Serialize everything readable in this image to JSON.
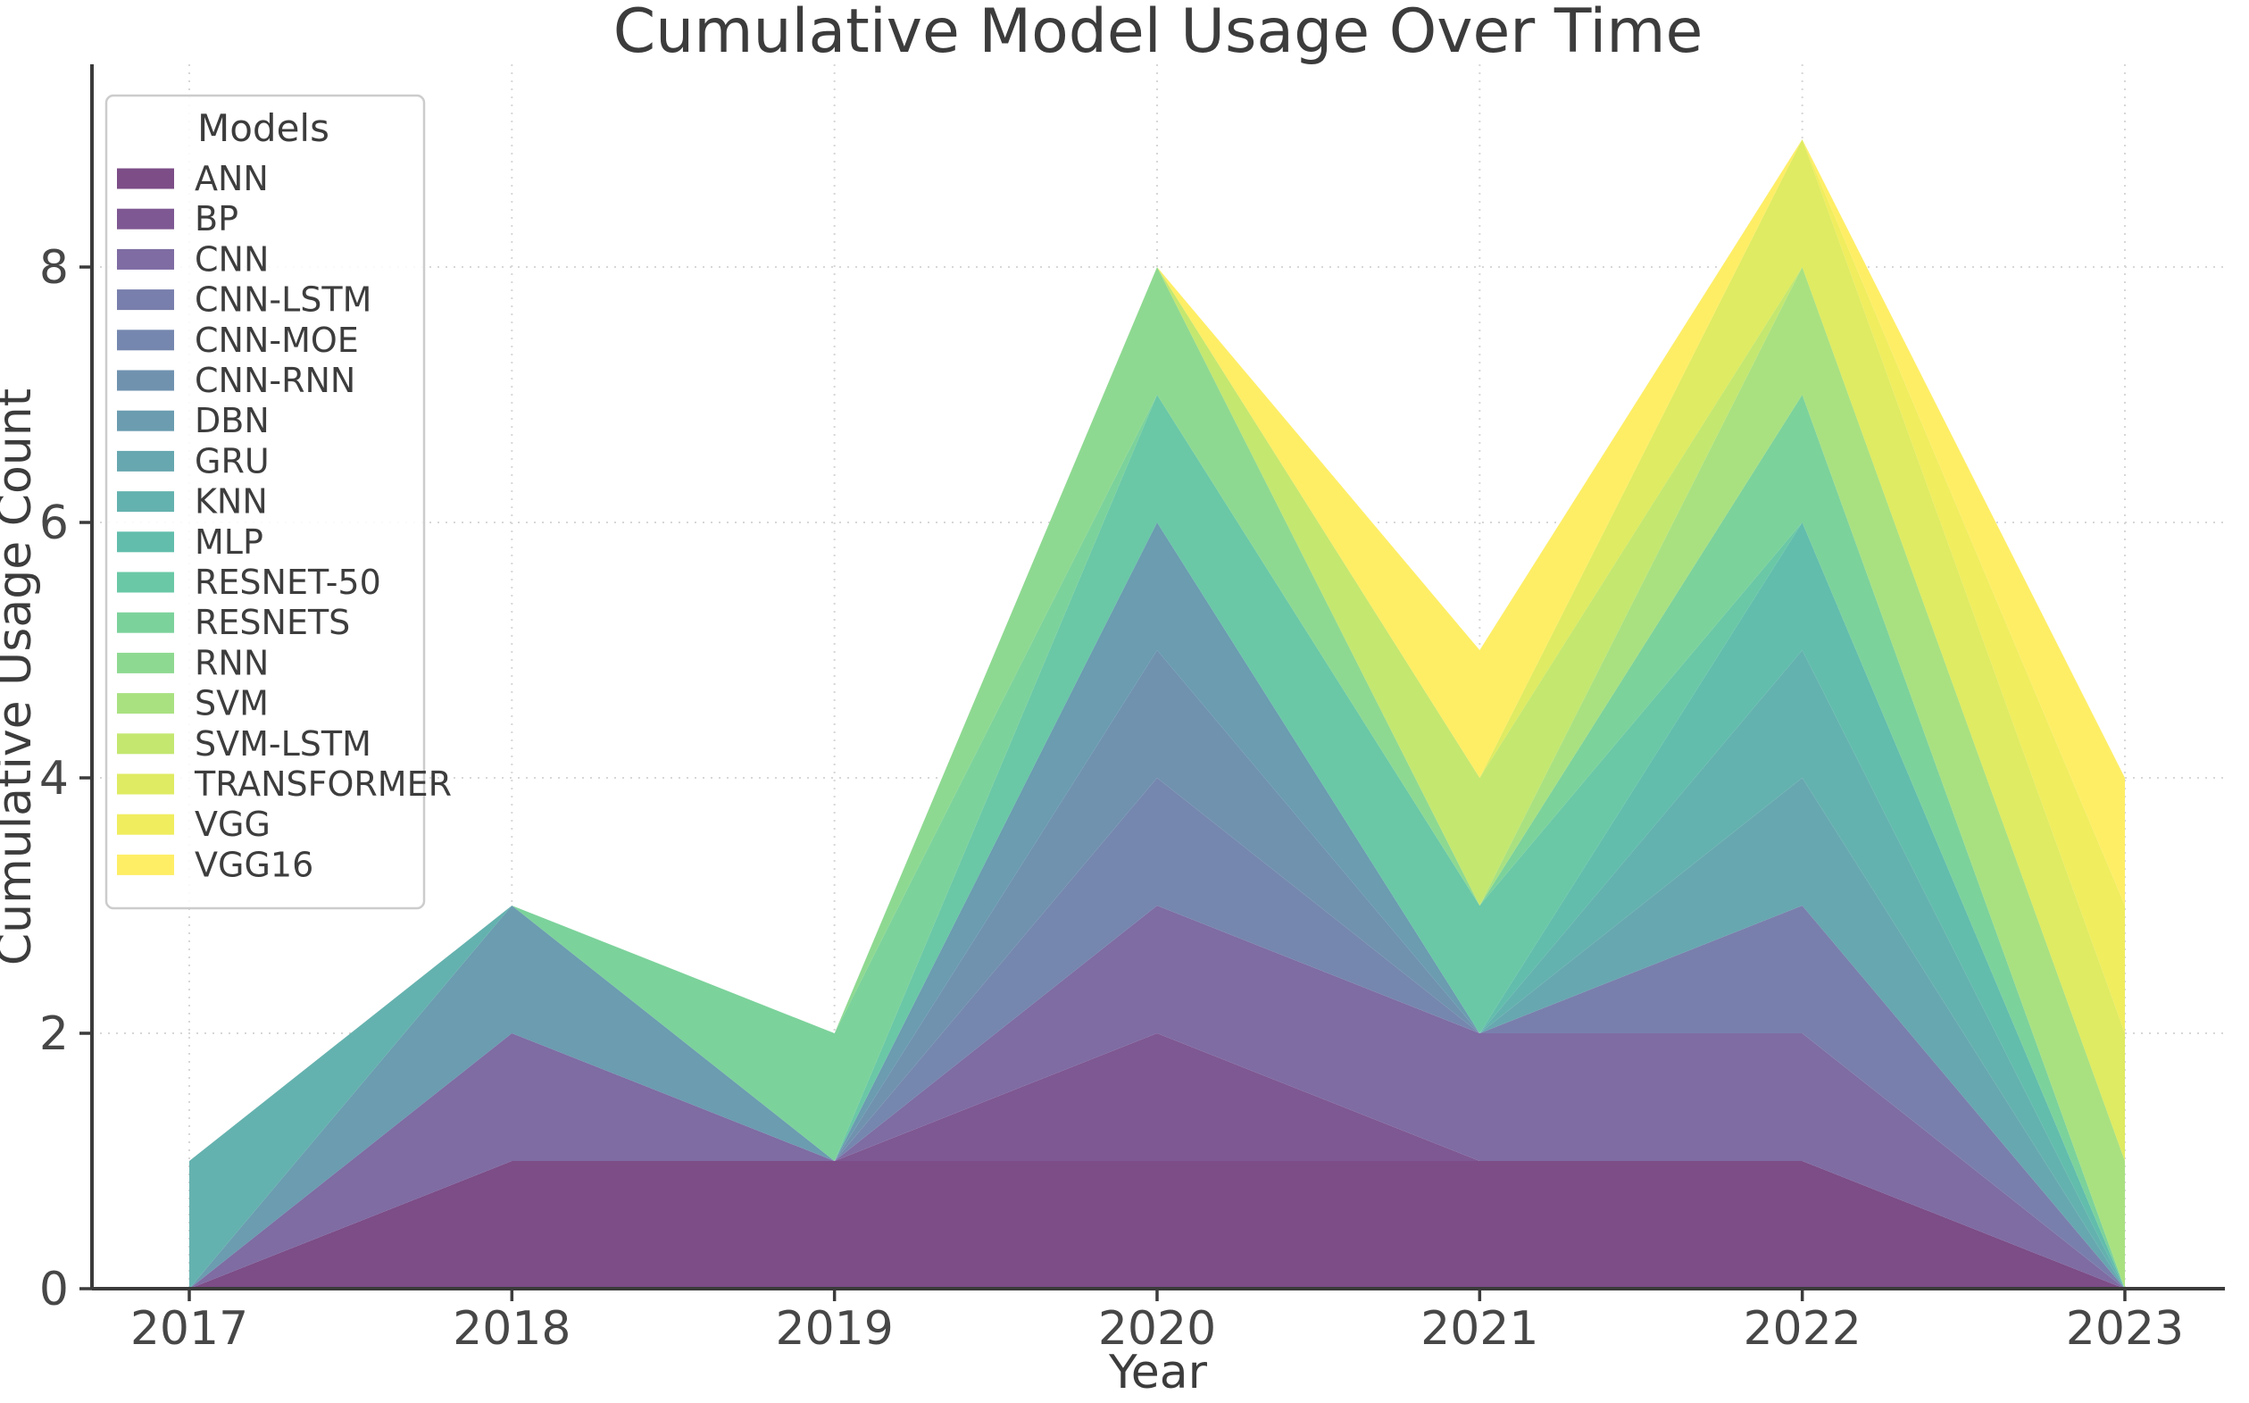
{
  "chart_data": {
    "type": "area",
    "stacked": true,
    "title": "Cumulative Model Usage Over Time",
    "xlabel": "Year",
    "ylabel": "Cumulative Usage Count",
    "legend_title": "Models",
    "legend_position": "upper-left",
    "grid": "dotted",
    "x": [
      2017,
      2018,
      2019,
      2020,
      2021,
      2022,
      2023
    ],
    "yticks": [
      0,
      2,
      4,
      6,
      8
    ],
    "ylim": [
      0,
      9.6
    ],
    "totals_by_year": [
      1,
      3,
      2,
      8,
      5,
      9,
      4
    ],
    "series": [
      {
        "name": "ANN",
        "color": "#7c4d87",
        "values": [
          0,
          1,
          1,
          1,
          1,
          1,
          0
        ]
      },
      {
        "name": "BP",
        "color": "#7e5892",
        "values": [
          0,
          0,
          0,
          1,
          0,
          0,
          0
        ]
      },
      {
        "name": "CNN",
        "color": "#7e6ca3",
        "values": [
          0,
          1,
          0,
          1,
          1,
          1,
          0
        ]
      },
      {
        "name": "CNN-LSTM",
        "color": "#797fac",
        "values": [
          0,
          0,
          0,
          0,
          0,
          1,
          0
        ]
      },
      {
        "name": "CNN-MOE",
        "color": "#7587ae",
        "values": [
          0,
          0,
          0,
          1,
          0,
          0,
          0
        ]
      },
      {
        "name": "CNN-RNN",
        "color": "#7092af",
        "values": [
          0,
          0,
          0,
          1,
          0,
          0,
          0
        ]
      },
      {
        "name": "DBN",
        "color": "#6b9cb0",
        "values": [
          0,
          1,
          0,
          1,
          0,
          0,
          0
        ]
      },
      {
        "name": "GRU",
        "color": "#67a7b0",
        "values": [
          0,
          0,
          0,
          0,
          0,
          1,
          0
        ]
      },
      {
        "name": "KNN",
        "color": "#64b2af",
        "values": [
          1,
          0,
          0,
          0,
          0,
          1,
          0
        ]
      },
      {
        "name": "MLP",
        "color": "#62bdac",
        "values": [
          0,
          0,
          0,
          0,
          0,
          1,
          0
        ]
      },
      {
        "name": "RESNET-50",
        "color": "#6ac8a6",
        "values": [
          0,
          0,
          0,
          1,
          1,
          0,
          0
        ]
      },
      {
        "name": "RESNETS",
        "color": "#7cd29b",
        "values": [
          0,
          0,
          1,
          0,
          0,
          1,
          0
        ]
      },
      {
        "name": "RNN",
        "color": "#8ed991",
        "values": [
          0,
          0,
          0,
          1,
          0,
          0,
          0
        ]
      },
      {
        "name": "SVM",
        "color": "#a9e181",
        "values": [
          0,
          0,
          0,
          0,
          0,
          1,
          1
        ]
      },
      {
        "name": "SVM-LSTM",
        "color": "#c4e770",
        "values": [
          0,
          0,
          0,
          0,
          1,
          0,
          0
        ]
      },
      {
        "name": "TRANSFORMER",
        "color": "#dfeb62",
        "values": [
          0,
          0,
          0,
          0,
          0,
          1,
          1
        ]
      },
      {
        "name": "VGG",
        "color": "#f0ed5f",
        "values": [
          0,
          0,
          0,
          0,
          0,
          0,
          1
        ]
      },
      {
        "name": "VGG16",
        "color": "#feee66",
        "values": [
          0,
          0,
          0,
          0,
          1,
          0,
          1
        ]
      }
    ],
    "style": {
      "spine_color": "#3b3b3b",
      "grid_color": "#d7d7d7",
      "legend_border_color": "#cccccc",
      "background": "#ffffff"
    }
  }
}
